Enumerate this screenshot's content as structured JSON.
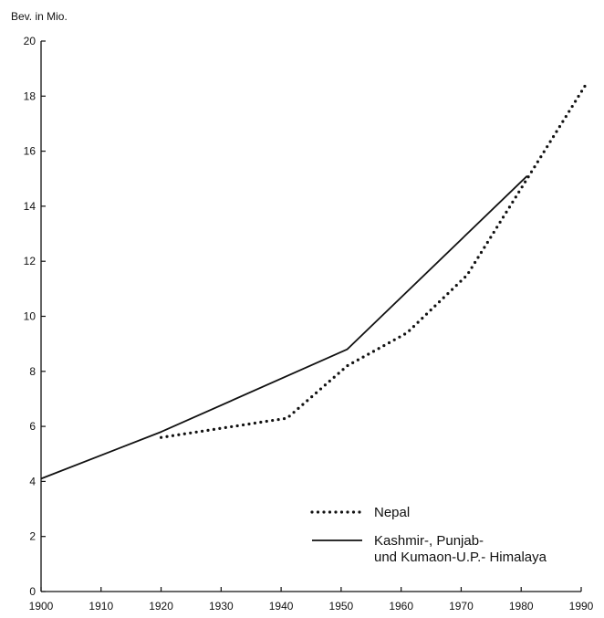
{
  "chart_data": {
    "type": "line",
    "title": "",
    "xlabel": "",
    "ylabel": "Bev. in Mio.",
    "xlim": [
      1900,
      1990
    ],
    "ylim": [
      0,
      20
    ],
    "grid": false,
    "legend_position": "bottom-right",
    "x_ticks": [
      1900,
      1910,
      1920,
      1930,
      1940,
      1950,
      1960,
      1970,
      1980,
      1990
    ],
    "y_ticks": [
      0,
      2,
      4,
      6,
      8,
      10,
      12,
      14,
      16,
      18,
      20
    ],
    "series": [
      {
        "name": "Nepal",
        "style": "dotted",
        "points": [
          [
            1920,
            5.6
          ],
          [
            1941,
            6.3
          ],
          [
            1951,
            8.2
          ],
          [
            1961,
            9.4
          ],
          [
            1971,
            11.5
          ],
          [
            1981,
            15.0
          ],
          [
            1991,
            18.5
          ]
        ]
      },
      {
        "name": "Kashmir-, Punjab- und Kumaon-U.P.- Himalaya",
        "style": "solid",
        "points": [
          [
            1900,
            4.1
          ],
          [
            1920,
            5.8
          ],
          [
            1951,
            8.8
          ],
          [
            1981,
            15.1
          ]
        ]
      }
    ],
    "legend": {
      "nepal": "Nepal",
      "himalaya_line1": "Kashmir-, Punjab-",
      "himalaya_line2": "und Kumaon-U.P.- Himalaya"
    }
  }
}
